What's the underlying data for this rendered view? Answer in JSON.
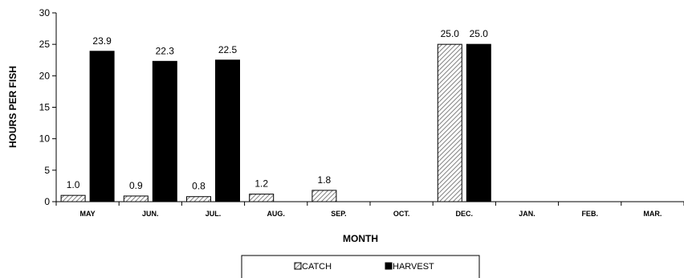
{
  "chart_data": {
    "type": "bar",
    "categories": [
      "MAY",
      "JUN.",
      "JUL.",
      "AUG.",
      "SEP.",
      "OCT.",
      "DEC.",
      "JAN.",
      "FEB.",
      "MAR."
    ],
    "series": [
      {
        "name": "CATCH",
        "values": [
          1.0,
          0.9,
          0.8,
          1.2,
          1.8,
          null,
          25.0,
          null,
          null,
          null
        ],
        "labels": [
          "1.0",
          "0.9",
          "0.8",
          "1.2",
          "1.8",
          "",
          "25.0",
          "",
          "",
          ""
        ]
      },
      {
        "name": "HARVEST",
        "values": [
          23.9,
          22.3,
          22.5,
          null,
          null,
          null,
          25.0,
          null,
          null,
          null
        ],
        "labels": [
          "23.9",
          "22.3",
          "22.5",
          "",
          "",
          "",
          "25.0",
          "",
          "",
          ""
        ]
      }
    ],
    "xlabel": "MONTH",
    "ylabel": "HOURS PER FISH",
    "ylim": [
      0,
      30
    ],
    "yticks": [
      0,
      5,
      10,
      15,
      20,
      25,
      30
    ],
    "yticklabels": [
      "0",
      "5",
      "10",
      "15",
      "20",
      "25",
      "30"
    ],
    "grid": false,
    "legend": "bottom",
    "colors": {
      "CATCH": "#d0d0d0",
      "HARVEST": "#000000"
    }
  }
}
